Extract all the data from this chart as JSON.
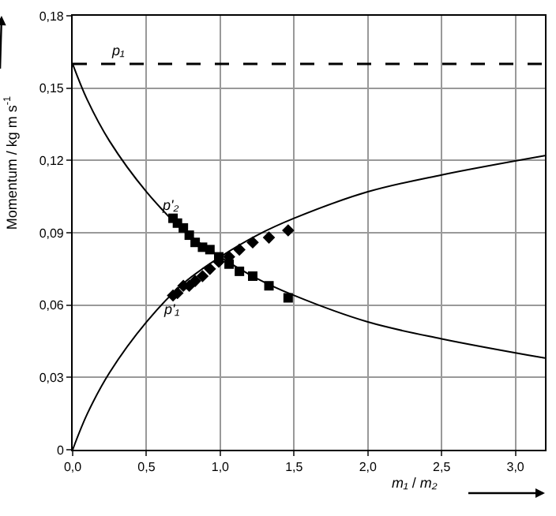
{
  "chart_data": {
    "type": "line",
    "xlabel": "m₁ / m₂",
    "ylabel": "Momentum / kg m s$^{-1}$",
    "xlim": [
      0,
      3.2
    ],
    "ylim": [
      0,
      0.18
    ],
    "xticks": [
      {
        "value": 0,
        "label": "0,0"
      },
      {
        "value": 0.5,
        "label": "0,5"
      },
      {
        "value": 1,
        "label": "1,0"
      },
      {
        "value": 1.5,
        "label": "1,5"
      },
      {
        "value": 2,
        "label": "2,0"
      },
      {
        "value": 2.5,
        "label": "2,5"
      },
      {
        "value": 3,
        "label": "3,0"
      }
    ],
    "yticks": [
      0,
      {
        "value": 0.03,
        "label": "0,03"
      },
      {
        "value": 0.06,
        "label": "0,06"
      },
      {
        "value": 0.09,
        "label": "0,09"
      },
      {
        "value": 0.12,
        "label": "0,12"
      },
      {
        "value": 0.15,
        "label": "0,15"
      },
      {
        "value": 0.18,
        "label": "0,18"
      }
    ],
    "grid": true,
    "legend": false,
    "series": [
      {
        "name": "p'₂",
        "color": "#000000",
        "marker": "none",
        "x": [
          0,
          0.1,
          0.25,
          0.5,
          0.75,
          1,
          1.25,
          1.5,
          2,
          2.5,
          3.2
        ],
        "values": [
          0.16,
          0.145,
          0.128,
          0.107,
          0.091,
          0.08,
          0.071,
          0.064,
          0.053,
          0.046,
          0.038
        ]
      },
      {
        "name": "p'₁",
        "color": "#000000",
        "marker": "none",
        "x": [
          0,
          0.1,
          0.25,
          0.5,
          0.75,
          1,
          1.25,
          1.5,
          2,
          2.5,
          3.2
        ],
        "values": [
          0,
          0.015,
          0.032,
          0.053,
          0.069,
          0.08,
          0.089,
          0.096,
          0.107,
          0.114,
          0.122
        ]
      },
      {
        "type": "scatter",
        "color": "#000000",
        "marker": "square",
        "x": [
          0.68,
          0.71,
          0.75,
          0.79,
          0.83,
          0.88,
          0.93,
          0.99,
          1.06,
          1.13,
          1.22,
          1.33,
          1.46
        ],
        "values": [
          0.096,
          0.094,
          0.092,
          0.089,
          0.086,
          0.084,
          0.083,
          0.08,
          0.077,
          0.074,
          0.072,
          0.068,
          0.063
        ]
      },
      {
        "type": "scatter",
        "color": "#000000",
        "marker": "diamond",
        "x": [
          0.68,
          0.71,
          0.75,
          0.79,
          0.83,
          0.88,
          0.93,
          0.99,
          1.06,
          1.13,
          1.22,
          1.33,
          1.46
        ],
        "values": [
          0.064,
          0.065,
          0.068,
          0.068,
          0.07,
          0.072,
          0.075,
          0.078,
          0.08,
          0.083,
          0.086,
          0.088,
          0.091
        ]
      }
    ],
    "ref_lines": [
      {
        "axis": "y",
        "value": 0.16,
        "label": "p₁",
        "color": "#000000",
        "line_style": "dashed"
      }
    ]
  }
}
